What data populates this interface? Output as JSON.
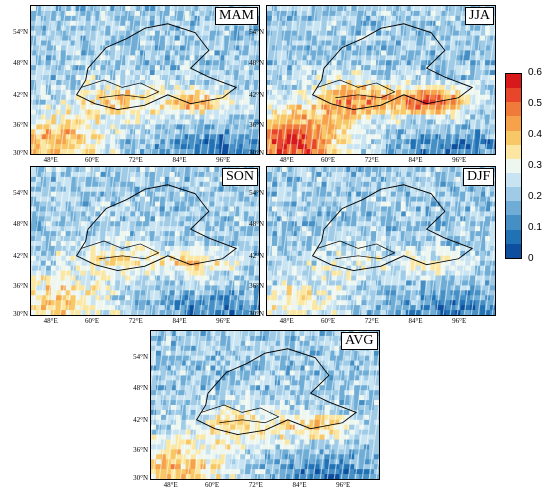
{
  "panels": [
    {
      "label": "MAM"
    },
    {
      "label": "JJA"
    },
    {
      "label": "SON"
    },
    {
      "label": "DJF"
    },
    {
      "label": "AVG"
    }
  ],
  "lat_labels": [
    "54°N",
    "48°N",
    "42°N",
    "36°N",
    "30°N"
  ],
  "lon_labels": [
    "48°E",
    "60°E",
    "72°E",
    "84°E",
    "96°E"
  ],
  "colorbar": {
    "ticks": [
      "0.6",
      "0.5",
      "0.4",
      "0.3",
      "0.2",
      "0.1",
      "0"
    ],
    "colors": [
      "#d7191c",
      "#e8462a",
      "#f07a3a",
      "#f5a24b",
      "#f8c766",
      "#fbe7a1",
      "#eef6f0",
      "#c8e4f2",
      "#9fcbe6",
      "#6fadd6",
      "#458fc5",
      "#2171b5",
      "#0d4f9e"
    ]
  }
}
